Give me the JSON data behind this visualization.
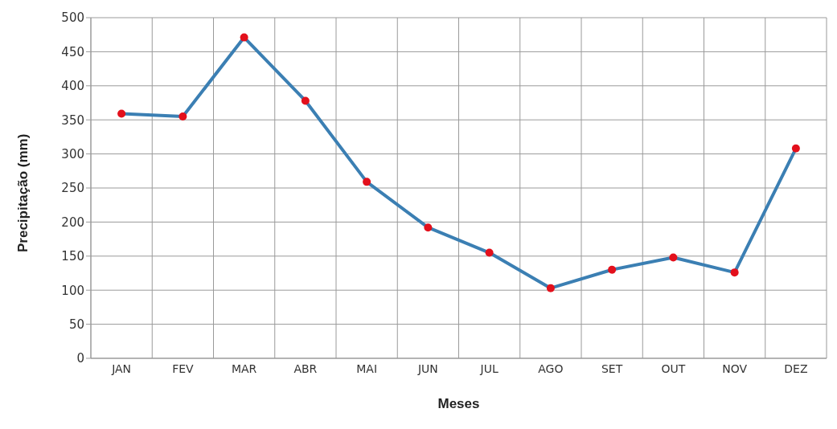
{
  "chart_data": {
    "type": "line",
    "xlabel": "Meses",
    "ylabel": "Precipitação (mm)",
    "categories": [
      "JAN",
      "FEV",
      "MAR",
      "ABR",
      "MAI",
      "JUN",
      "JUL",
      "AGO",
      "SET",
      "OUT",
      "NOV",
      "DEZ"
    ],
    "series": [
      {
        "color": "#3b7fb3",
        "colors": [
          "#e3101c",
          "#e3101c",
          "#e3101c",
          "#e3101c",
          "#e3101c",
          "#e3101c",
          "#e3101c",
          "#e3101c",
          "#e3101c",
          "#e3101c",
          "#e3101c",
          "#e3101c"
        ],
        "values": [
          359,
          355,
          471,
          378,
          259,
          192,
          155,
          103,
          130,
          148,
          126,
          308
        ]
      }
    ],
    "ylim": [
      0,
      500
    ],
    "yticks": [
      0,
      50,
      100,
      150,
      200,
      250,
      300,
      350,
      400,
      450,
      500
    ],
    "grid": true,
    "marker": "circle",
    "line_style": "solid",
    "legend": false
  }
}
